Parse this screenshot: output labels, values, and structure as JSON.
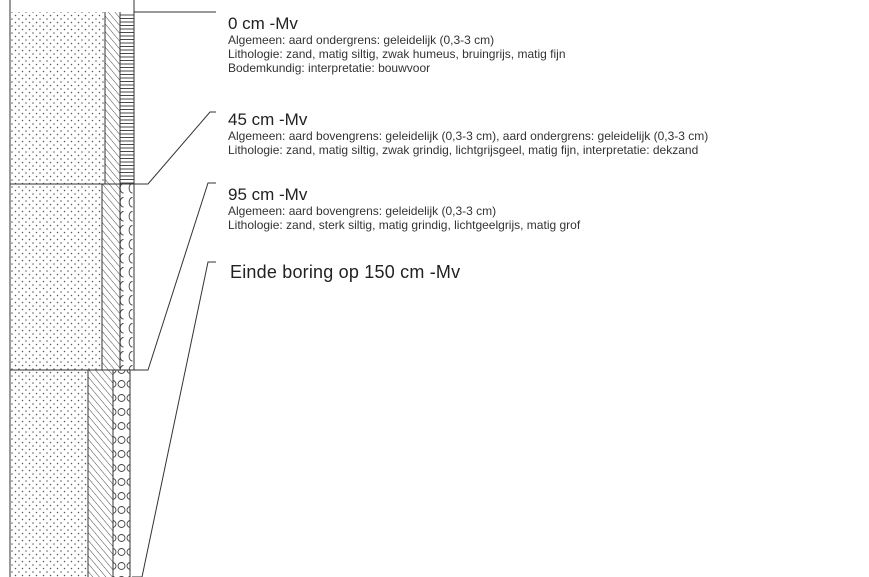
{
  "layers": [
    {
      "depth": "0 cm -Mv",
      "lines": [
        "Algemeen: aard ondergrens: geleidelijk (0,3-3 cm)",
        "Lithologie: zand, matig siltig, zwak humeus, bruingrijs, matig fijn",
        "Bodemkundig: interpretatie: bouwvoor"
      ]
    },
    {
      "depth": "45 cm -Mv",
      "lines": [
        "Algemeen: aard bovengrens: geleidelijk (0,3-3 cm), aard ondergrens: geleidelijk (0,3-3 cm)",
        "Lithologie: zand, matig siltig, zwak grindig, lichtgrijsgeel, matig fijn, interpretatie: dekzand"
      ]
    },
    {
      "depth": "95 cm -Mv",
      "lines": [
        "Algemeen: aard bovengrens: geleidelijk (0,3-3 cm)",
        "Lithologie: zand, sterk siltig, matig grindig, lichtgeelgrijs, matig grof"
      ]
    }
  ],
  "end_of_boring": "Einde boring op 150 cm -Mv"
}
